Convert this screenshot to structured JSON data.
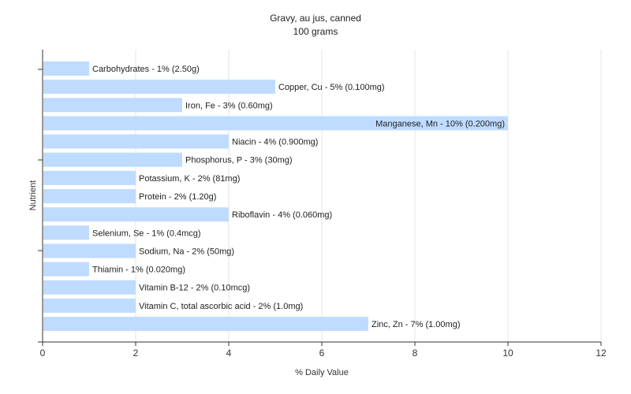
{
  "chart_data": {
    "type": "bar",
    "orientation": "horizontal",
    "title": "Gravy, au jus, canned",
    "subtitle": "100 grams",
    "xlabel": "% Daily Value",
    "ylabel": "Nutrient",
    "xlim": [
      0,
      12
    ],
    "x_ticks": [
      "0",
      "2",
      "4",
      "6",
      "8",
      "10",
      "12"
    ],
    "grid": true,
    "bar_color": "#bfdbff",
    "categories": [
      "Carbohydrates",
      "Copper, Cu",
      "Iron, Fe",
      "Manganese, Mn",
      "Niacin",
      "Phosphorus, P",
      "Potassium, K",
      "Protein",
      "Riboflavin",
      "Selenium, Se",
      "Sodium, Na",
      "Thiamin",
      "Vitamin B-12",
      "Vitamin C, total ascorbic acid",
      "Zinc, Zn"
    ],
    "values": [
      1,
      5,
      3,
      10,
      4,
      3,
      2,
      2,
      4,
      1,
      2,
      1,
      2,
      2,
      7
    ],
    "labels": [
      "Carbohydrates - 1% (2.50g)",
      "Copper, Cu - 5% (0.100mg)",
      "Iron, Fe - 3% (0.60mg)",
      "Manganese, Mn - 10% (0.200mg)",
      "Niacin - 4% (0.900mg)",
      "Phosphorus, P - 3% (30mg)",
      "Potassium, K - 2% (81mg)",
      "Protein - 2% (1.20g)",
      "Riboflavin - 4% (0.060mg)",
      "Selenium, Se - 1% (0.4mcg)",
      "Sodium, Na - 2% (50mg)",
      "Thiamin - 1% (0.020mg)",
      "Vitamin B-12 - 2% (0.10mcg)",
      "Vitamin C, total ascorbic acid - 2% (1.0mg)",
      "Zinc, Zn - 7% (1.00mg)"
    ]
  }
}
